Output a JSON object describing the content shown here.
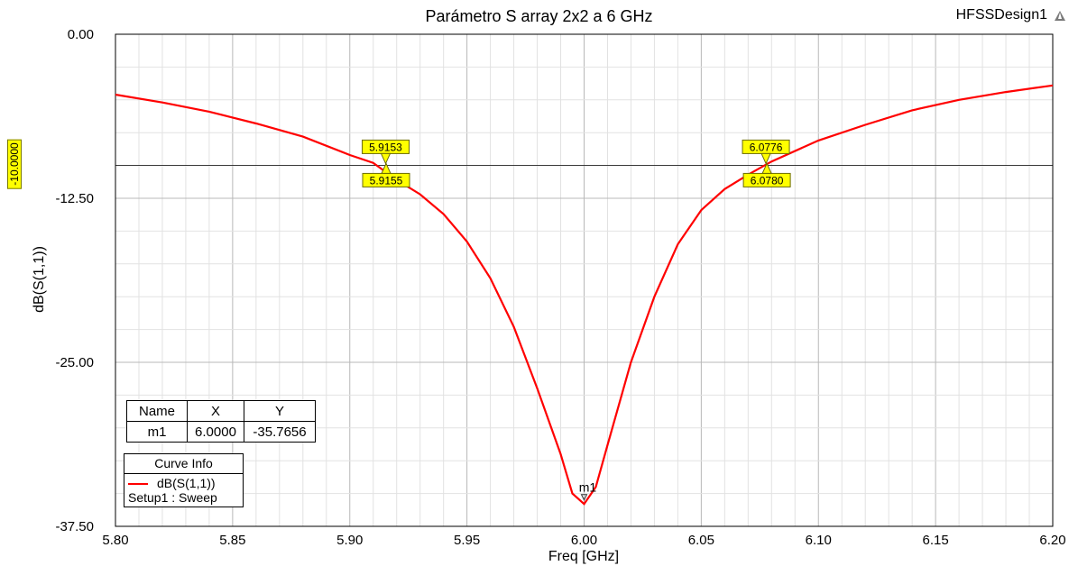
{
  "header": {
    "design_name": "HFSSDesign1"
  },
  "chart_data": {
    "type": "line",
    "title": "Parámetro S array 2x2 a 6 GHz",
    "xlabel": "Freq [GHz]",
    "ylabel": "dB(S(1,1))",
    "xlim": [
      5.8,
      6.2
    ],
    "ylim": [
      -37.5,
      0.0
    ],
    "x_ticks": [
      "5.80",
      "5.85",
      "5.90",
      "5.95",
      "6.00",
      "6.05",
      "6.10",
      "6.15",
      "6.20"
    ],
    "y_ticks": [
      "0.00",
      "-12.50",
      "-25.00",
      "-37.50"
    ],
    "grid": true,
    "reference_line": {
      "y": -10.0,
      "label": "-10.0000"
    },
    "series": [
      {
        "name": "dB(S(1,1))",
        "color": "#ff0000",
        "x": [
          5.8,
          5.82,
          5.84,
          5.86,
          5.88,
          5.9,
          5.91,
          5.92,
          5.93,
          5.94,
          5.95,
          5.96,
          5.97,
          5.98,
          5.99,
          5.995,
          6.0,
          6.005,
          6.01,
          6.02,
          6.03,
          6.04,
          6.05,
          6.06,
          6.07,
          6.08,
          6.1,
          6.12,
          6.14,
          6.16,
          6.18,
          6.2
        ],
        "y": [
          -4.6,
          -5.2,
          -5.9,
          -6.8,
          -7.8,
          -9.2,
          -9.8,
          -11.1,
          -12.2,
          -13.7,
          -15.8,
          -18.6,
          -22.3,
          -27.0,
          -32.0,
          -35.0,
          -35.8,
          -34.5,
          -31.3,
          -25.0,
          -20.0,
          -16.0,
          -13.4,
          -11.8,
          -10.7,
          -9.7,
          -8.1,
          -6.9,
          -5.8,
          -5.0,
          -4.4,
          -3.9
        ]
      }
    ],
    "marker_labels": [
      {
        "x": 5.9153,
        "y": -9.85,
        "text": "5.9153",
        "position": "above"
      },
      {
        "x": 5.9155,
        "y": -9.85,
        "text": "5.9155",
        "position": "below"
      },
      {
        "x": 6.0776,
        "y": -9.85,
        "text": "6.0776",
        "position": "above"
      },
      {
        "x": 6.078,
        "y": -9.85,
        "text": "6.0780",
        "position": "below"
      }
    ],
    "point_marker": {
      "name": "m1",
      "x": 6.0,
      "y": -35.7656
    },
    "marker_table": {
      "headers": [
        "Name",
        "X",
        "Y"
      ],
      "rows": [
        [
          "m1",
          "6.0000",
          "-35.7656"
        ]
      ]
    },
    "curve_info": {
      "title": "Curve Info",
      "entry": "dB(S(1,1))",
      "setup": "Setup1 : Sweep"
    }
  }
}
